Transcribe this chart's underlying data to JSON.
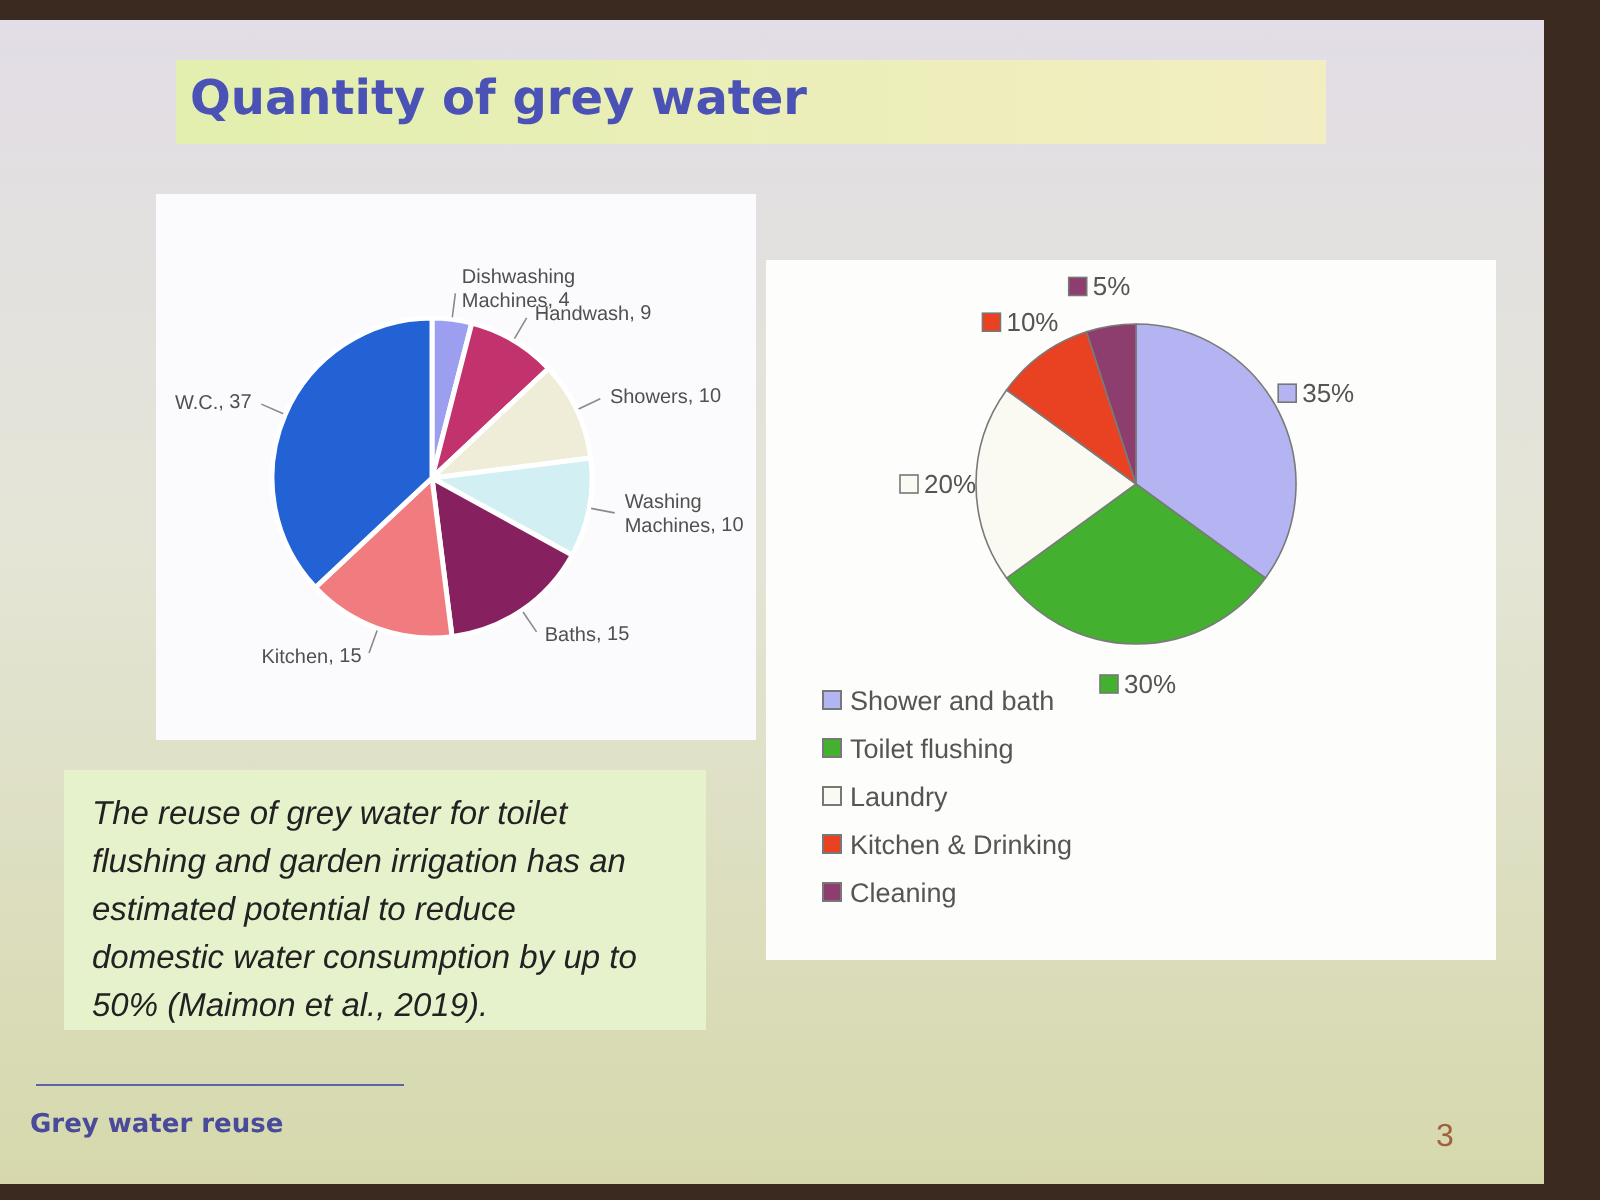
{
  "chart_data": [
    {
      "type": "pie",
      "title": "Quantity of grey water",
      "categories": [
        "Dishwashing Machines",
        "Handwash",
        "Showers",
        "Washing Machines",
        "Baths",
        "Kitchen",
        "W.C."
      ],
      "values": [
        4,
        9,
        10,
        10,
        15,
        15,
        37
      ],
      "colors": [
        "#9c9ef0",
        "#c2326c",
        "#efecd8",
        "#d2eff4",
        "#86205e",
        "#f07c80",
        "#2262d4"
      ],
      "value_labels": [
        ", 4",
        ", 9",
        ", 10",
        ", 10",
        ", 15",
        ", 15",
        ", 37"
      ],
      "annotations": [
        "The reuse of grey water for toilet flushing and garden irrigation has an estimated potential to reduce domestic water consumption by up to 50% (Maimon et al., 2019).",
        "Grey water reuse",
        "3"
      ]
    },
    {
      "type": "pie",
      "categories": [
        "Shower and bath",
        "Toilet flushing",
        "Laundry",
        "Kitchen & Drinking",
        "Cleaning"
      ],
      "values": [
        35,
        30,
        20,
        10,
        5
      ],
      "colors": [
        "#b4b4f2",
        "#44b030",
        "#fafaf2",
        "#e84222",
        "#8e3e6e"
      ],
      "value_labels": [
        "35%",
        "30%",
        "20%",
        "10%",
        "5%"
      ],
      "legend": "bottom left"
    }
  ]
}
